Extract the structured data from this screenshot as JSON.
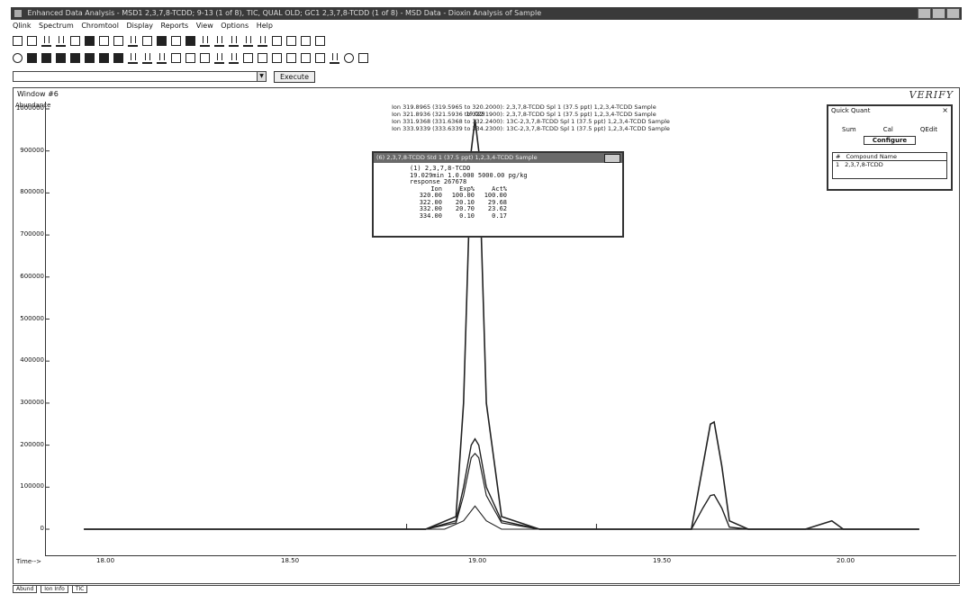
{
  "window": {
    "title": "Enhanced Data Analysis - MSD1 2,3,7,8-TCDD; 9-13 (1 of 8), TIC, QUAL OLD; GC1 2,3,7,8-TCDD (1 of 8) - MSD Data - Dioxin Analysis of Sample",
    "controls": [
      "minimize",
      "maximize",
      "close"
    ]
  },
  "menu": [
    "Qlink",
    "Spectrum",
    "Chromtool",
    "Display",
    "Reports",
    "View",
    "Options",
    "Help"
  ],
  "command": {
    "input_value": "",
    "execute_label": "Execute"
  },
  "document": {
    "title": "Window #6",
    "logo": "VERIFY",
    "abundance_label": "Abundance",
    "time_label": "Time-->",
    "ion_lines": [
      "Ion 319.8965 (319.5965 to 320.2000): 2,3,7,8-TCDD Spl 1 (37.5 ppt) 1,2,3,4-TCDD Sample",
      "Ion 321.8936 (321.5936 to 322.1900): 2,3,7,8-TCDD Spl 1 (37.5 ppt) 1,2,3,4-TCDD Sample",
      "Ion 331.9368 (331.6368 to 332.2400): 13C-2,3,7,8-TCDD Spl 1 (37.5 ppt) 1,2,3,4-TCDD Sample",
      "Ion 333.9339 (333.6339 to 334.2300): 13C-2,3,7,8-TCDD Spl 1 (37.5 ppt) 1,2,3,4-TCDD Sample"
    ],
    "y_ticks": [
      "1000000",
      "900000",
      "800000",
      "700000",
      "600000",
      "500000",
      "400000",
      "300000",
      "200000",
      "100000",
      "0"
    ],
    "x_ticks": [
      "18.00",
      "18.50",
      "19.00",
      "19.50",
      "20.00"
    ],
    "peak_label": "19.029"
  },
  "popup": {
    "title": "(6) 2,3,7,8-TCDD Std 1 (37.5 ppt) 1,2,3,4-TCDD Sample",
    "line1": "(1) 2,3,7,8-TCDD",
    "line2": "19.029min  1.0.000   5000.00 pg/kg",
    "line3": "response   267678",
    "headers": [
      "Ion",
      "Exp%",
      "Act%"
    ],
    "rows": [
      [
        "320.00",
        "100.00",
        "100.00"
      ],
      [
        "322.00",
        "20.10",
        "29.68"
      ],
      [
        "332.00",
        "20.70",
        "23.62"
      ],
      [
        "334.00",
        "0.10",
        "0.17"
      ]
    ]
  },
  "quick_quant": {
    "title": "Quick Quant",
    "labels": [
      "Sum",
      "Cal",
      "QEdit"
    ],
    "config_label": "Configure",
    "table_headers": [
      "#",
      "Compound Name"
    ],
    "table_rows": [
      [
        "1",
        "2,3,7,8-TCDD"
      ]
    ]
  },
  "bottom_bar": [
    "Abund",
    "Ion Info",
    "TIC"
  ],
  "chart_data": {
    "type": "line",
    "xlabel": "Time-->",
    "ylabel": "Abundance",
    "xlim": [
      17.9,
      20.3
    ],
    "ylim": [
      0,
      1000000
    ],
    "series": [
      {
        "x": [
          18.0,
          18.9,
          18.98,
          19.0,
          19.02,
          19.03,
          19.04,
          19.06,
          19.1,
          19.2,
          19.6,
          19.6,
          19.63,
          19.65,
          19.66,
          19.68,
          19.7,
          19.75,
          19.9,
          19.97,
          20.0,
          20.2
        ],
        "values": [
          0,
          0,
          30000,
          300000,
          900000,
          975000,
          900000,
          300000,
          30000,
          0,
          0,
          0,
          150000,
          250000,
          255000,
          150000,
          20000,
          0,
          0,
          20000,
          0,
          0
        ]
      },
      {
        "x": [
          18.0,
          18.9,
          18.98,
          19.0,
          19.02,
          19.03,
          19.04,
          19.06,
          19.1,
          19.2,
          19.6,
          19.63,
          19.65,
          19.66,
          19.68,
          19.7,
          19.75,
          20.2
        ],
        "values": [
          0,
          0,
          20000,
          100000,
          200000,
          215000,
          200000,
          100000,
          20000,
          0,
          0,
          50000,
          80000,
          82000,
          50000,
          5000,
          0,
          0
        ]
      },
      {
        "x": [
          18.0,
          18.9,
          18.98,
          19.0,
          19.02,
          19.03,
          19.04,
          19.06,
          19.1,
          19.2,
          20.2
        ],
        "values": [
          0,
          0,
          15000,
          80000,
          170000,
          180000,
          170000,
          80000,
          15000,
          0,
          0
        ]
      },
      {
        "x": [
          18.0,
          18.95,
          19.0,
          19.03,
          19.06,
          19.1,
          19.2,
          20.2
        ],
        "values": [
          0,
          0,
          20000,
          55000,
          20000,
          0,
          0,
          0
        ]
      }
    ]
  }
}
